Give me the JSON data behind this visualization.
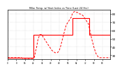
{
  "title": "Milw. Temp. w/ Heat Index vs Time (Last 24 Hrs)",
  "bg_color": "#ffffff",
  "plot_bg_color": "#ffffff",
  "grid_color": "#aaaaaa",
  "line1_color": "#ff0000",
  "line2_color": "#ff0000",
  "ylim": [
    25,
    85
  ],
  "yticks": [
    30,
    40,
    50,
    60,
    70,
    80
  ],
  "n_points": 96,
  "temp_values": [
    27,
    27,
    27,
    27,
    27,
    27,
    27,
    27,
    27,
    27,
    27,
    27,
    27,
    27,
    27,
    27,
    27,
    27,
    27,
    27,
    27,
    27,
    27,
    27,
    55,
    55,
    55,
    55,
    55,
    55,
    55,
    55,
    55,
    55,
    55,
    55,
    55,
    55,
    55,
    55,
    55,
    55,
    55,
    55,
    55,
    55,
    55,
    55,
    55,
    55,
    55,
    55,
    55,
    55,
    55,
    55,
    55,
    55,
    55,
    55,
    75,
    75,
    75,
    75,
    75,
    75,
    75,
    75,
    75,
    75,
    75,
    75,
    75,
    75,
    75,
    75,
    55,
    55,
    55,
    55,
    55,
    55,
    55,
    55,
    55,
    55,
    55,
    55,
    55,
    55,
    55,
    55,
    55,
    55,
    55,
    55
  ],
  "heat_values": [
    27,
    27,
    27,
    27,
    27,
    27,
    27,
    27,
    27,
    27,
    27,
    27,
    27,
    27,
    26,
    26,
    26,
    26,
    26,
    26,
    26,
    26,
    26,
    26,
    26,
    28,
    35,
    40,
    48,
    52,
    55,
    55,
    55,
    52,
    50,
    48,
    46,
    44,
    42,
    40,
    38,
    36,
    35,
    34,
    33,
    33,
    33,
    34,
    36,
    40,
    45,
    50,
    55,
    60,
    65,
    68,
    70,
    72,
    74,
    76,
    80,
    82,
    83,
    83,
    82,
    82,
    81,
    80,
    80,
    79,
    78,
    76,
    74,
    72,
    70,
    68,
    62,
    56,
    50,
    45,
    40,
    36,
    32,
    30,
    28,
    27,
    27,
    27,
    27,
    27,
    27,
    27,
    27,
    27,
    27,
    27
  ]
}
